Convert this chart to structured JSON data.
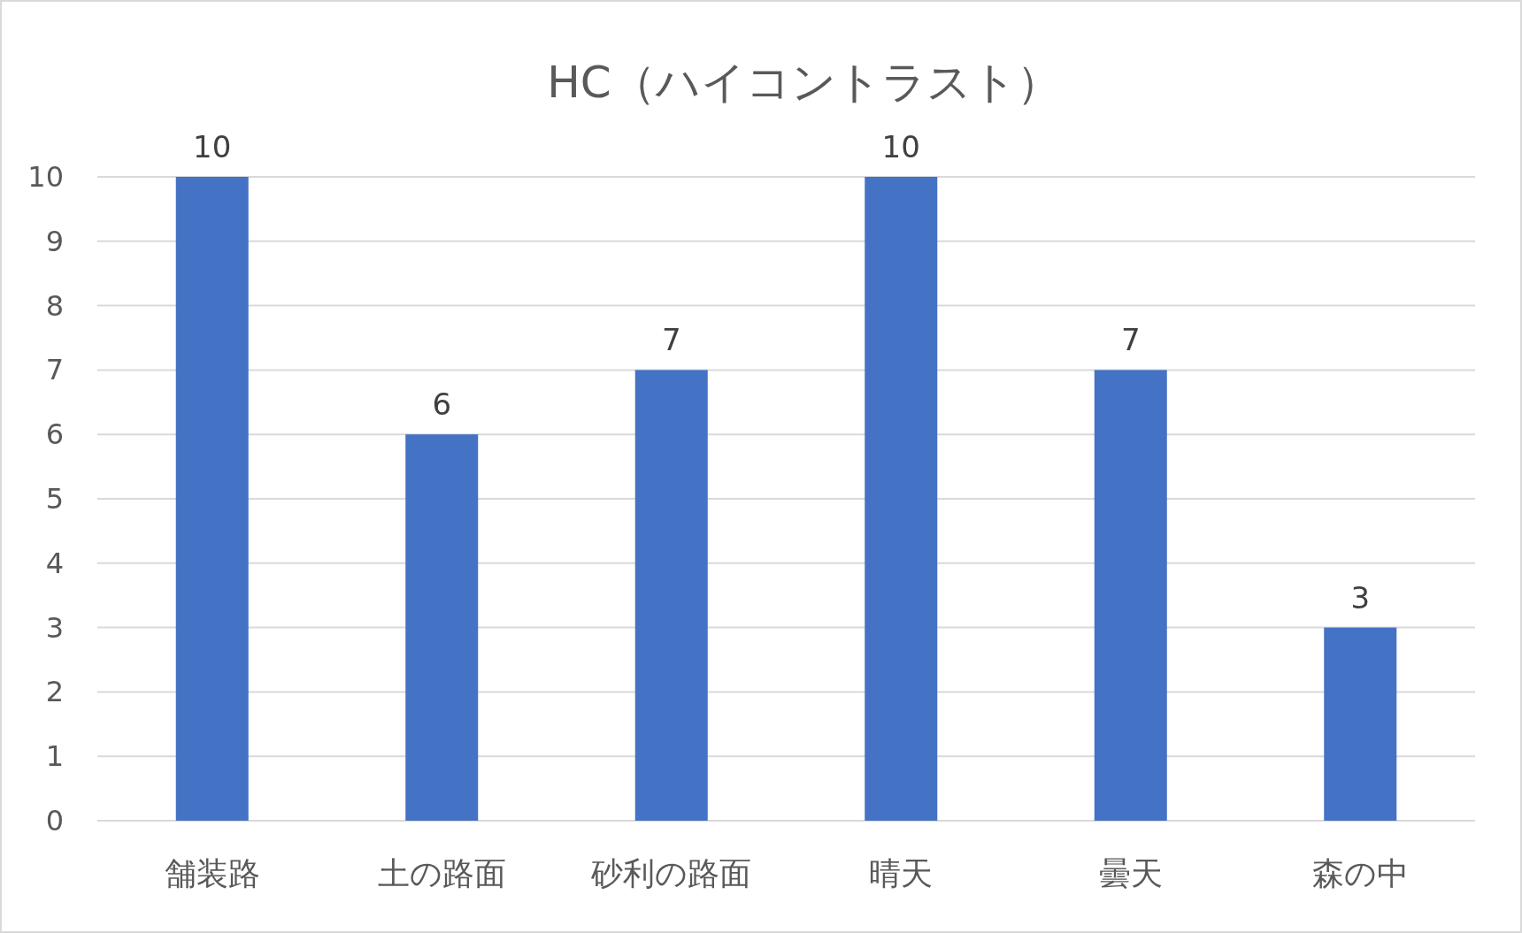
{
  "chart_data": {
    "type": "bar",
    "title": "HC（ハイコントラスト）",
    "categories": [
      "舗装路",
      "土の路面",
      "砂利の路面",
      "晴天",
      "曇天",
      "森の中"
    ],
    "values": [
      10,
      6,
      7,
      10,
      7,
      3
    ],
    "color": "#4472c4",
    "ylim": [
      0,
      10
    ],
    "yticks": [
      0,
      1,
      2,
      3,
      4,
      5,
      6,
      7,
      8,
      9,
      10
    ],
    "grid": "y",
    "data_labels": true
  }
}
